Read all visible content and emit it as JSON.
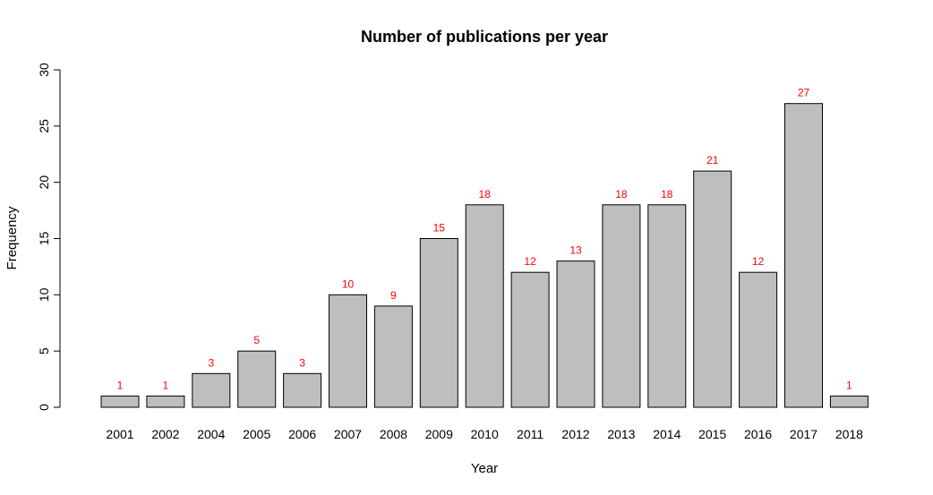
{
  "chart_data": {
    "type": "bar",
    "title": "Number of publications per year",
    "xlabel": "Year",
    "ylabel": "Frequency",
    "categories": [
      "2001",
      "2002",
      "2004",
      "2005",
      "2006",
      "2007",
      "2008",
      "2009",
      "2010",
      "2011",
      "2012",
      "2013",
      "2014",
      "2015",
      "2016",
      "2017",
      "2018"
    ],
    "values": [
      1,
      1,
      3,
      5,
      3,
      10,
      9,
      15,
      18,
      12,
      13,
      18,
      18,
      21,
      12,
      27,
      1
    ],
    "value_labels": [
      "1",
      "1",
      "3",
      "5",
      "3",
      "10",
      "9",
      "15",
      "18",
      "12",
      "13",
      "18",
      "18",
      "21",
      "12",
      "27",
      "1"
    ],
    "ylim": [
      0,
      30
    ],
    "y_ticks": [
      0,
      5,
      10,
      15,
      20,
      25,
      30
    ],
    "y_tick_labels": [
      "0",
      "5",
      "10",
      "15",
      "20",
      "25",
      "30"
    ],
    "grid": false,
    "bar_fill": "#bebebe",
    "bar_stroke": "#000000",
    "value_label_color": "#ff0000"
  }
}
